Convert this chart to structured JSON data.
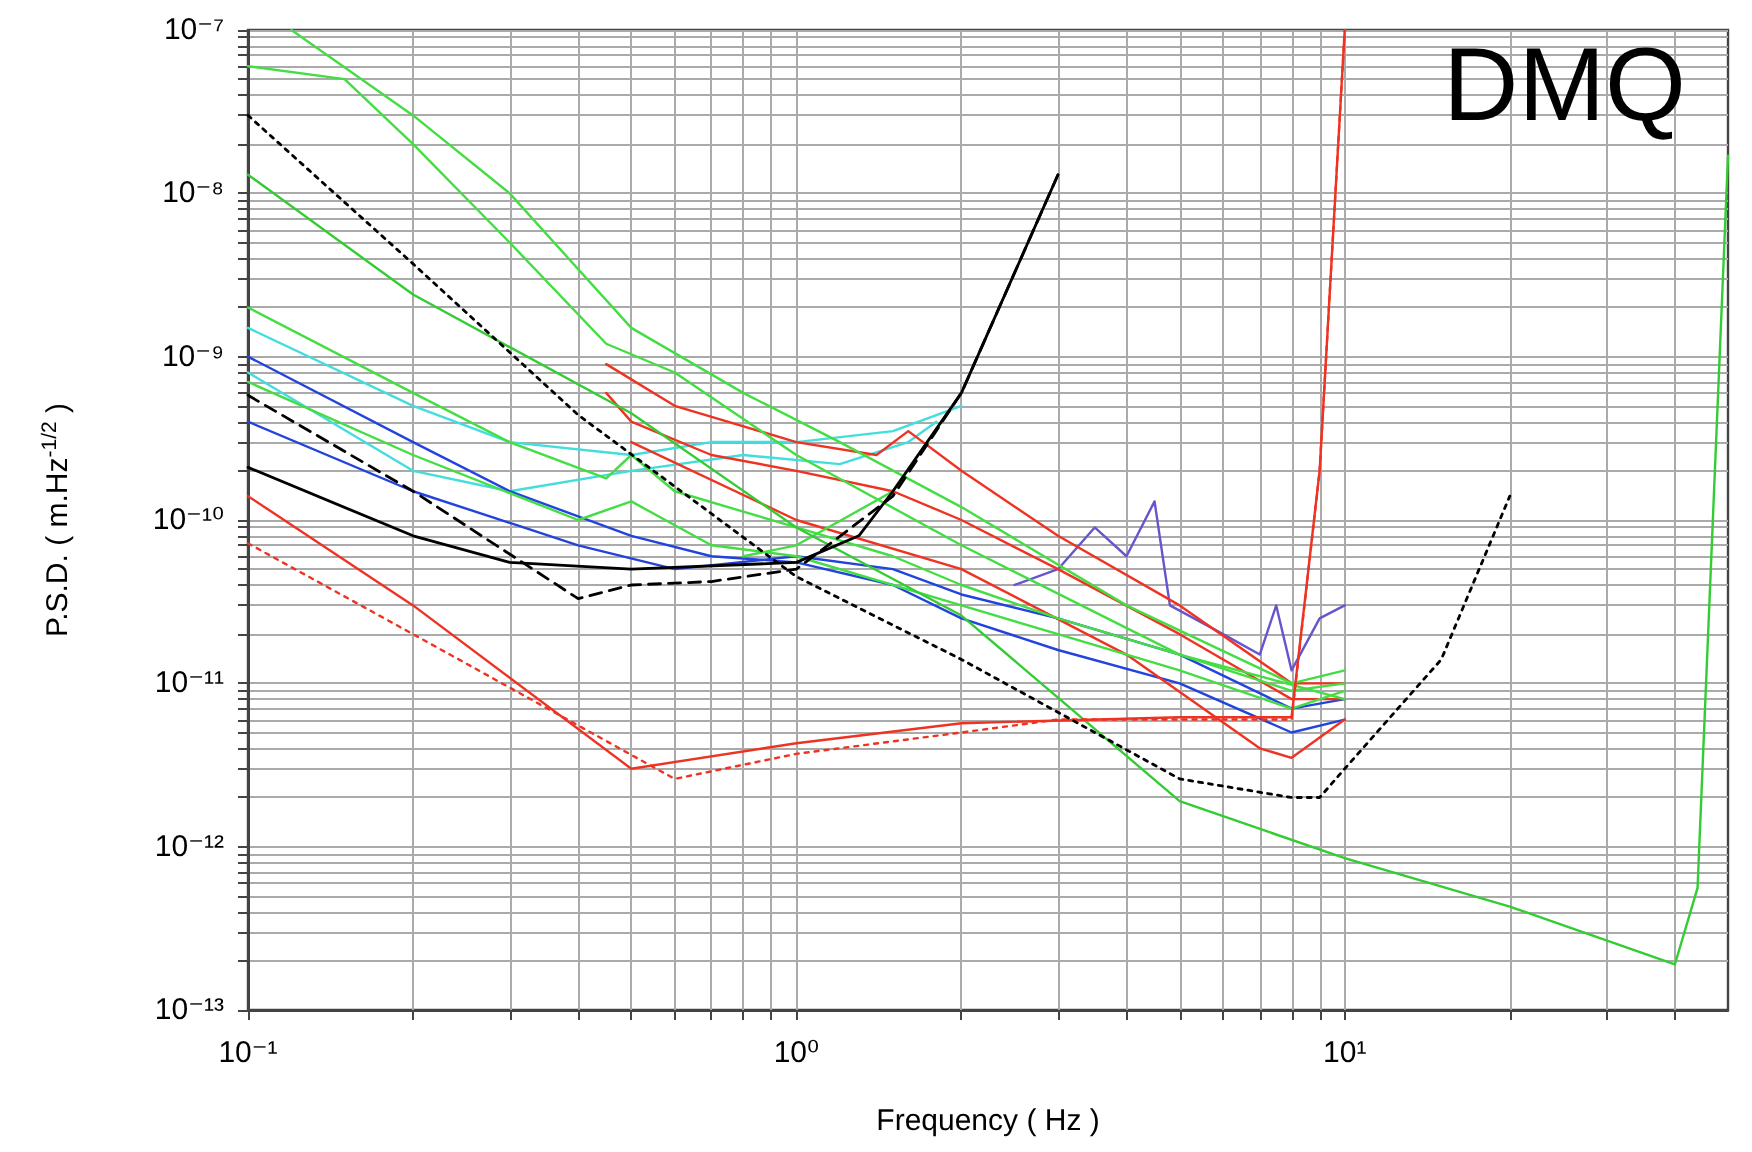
{
  "chart_data": {
    "type": "line",
    "title": "DMQ",
    "xlabel": "Frequency ( Hz )",
    "ylabel": "P.S.D. ( m.Hz$^{-1/2}$ )",
    "log": "xy",
    "grid": true,
    "legend": false,
    "marker": "none",
    "xlim": [
      0.1,
      50
    ],
    "ylim": [
      1e-13,
      1e-07
    ],
    "xticks": [
      {
        "value": 0.1,
        "label": "10⁻¹"
      },
      {
        "value": 0.2,
        "label": null
      },
      {
        "value": 0.3,
        "label": null
      },
      {
        "value": 0.4,
        "label": null
      },
      {
        "value": 0.5,
        "label": null
      },
      {
        "value": 0.6,
        "label": null
      },
      {
        "value": 0.7,
        "label": null
      },
      {
        "value": 0.8,
        "label": null
      },
      {
        "value": 0.9,
        "label": null
      },
      {
        "value": 1,
        "label": "10⁰"
      },
      {
        "value": 2,
        "label": null
      },
      {
        "value": 3,
        "label": null
      },
      {
        "value": 4,
        "label": null
      },
      {
        "value": 5,
        "label": null
      },
      {
        "value": 6,
        "label": null
      },
      {
        "value": 7,
        "label": null
      },
      {
        "value": 8,
        "label": null
      },
      {
        "value": 9,
        "label": null
      },
      {
        "value": 10,
        "label": "10¹"
      },
      {
        "value": 20,
        "label": null
      },
      {
        "value": 30,
        "label": null
      },
      {
        "value": 40,
        "label": null
      }
    ],
    "yticks": [
      {
        "value": 1e-13,
        "label": "10⁻¹³"
      },
      {
        "value": 2e-13,
        "label": null
      },
      {
        "value": 3e-13,
        "label": null
      },
      {
        "value": 4e-13,
        "label": null
      },
      {
        "value": 5e-13,
        "label": null
      },
      {
        "value": 6e-13,
        "label": null
      },
      {
        "value": 7e-13,
        "label": null
      },
      {
        "value": 8e-13,
        "label": null
      },
      {
        "value": 9e-13,
        "label": null
      },
      {
        "value": 1e-12,
        "label": "10⁻¹²"
      },
      {
        "value": 2e-12,
        "label": null
      },
      {
        "value": 3e-12,
        "label": null
      },
      {
        "value": 4e-12,
        "label": null
      },
      {
        "value": 5e-12,
        "label": null
      },
      {
        "value": 6e-12,
        "label": null
      },
      {
        "value": 7e-12,
        "label": null
      },
      {
        "value": 8e-12,
        "label": null
      },
      {
        "value": 9e-12,
        "label": null
      },
      {
        "value": 1e-11,
        "label": "10⁻¹¹"
      },
      {
        "value": 2e-11,
        "label": null
      },
      {
        "value": 3e-11,
        "label": null
      },
      {
        "value": 4e-11,
        "label": null
      },
      {
        "value": 5e-11,
        "label": null
      },
      {
        "value": 6e-11,
        "label": null
      },
      {
        "value": 7e-11,
        "label": null
      },
      {
        "value": 8e-11,
        "label": null
      },
      {
        "value": 9e-11,
        "label": null
      },
      {
        "value": 1e-10,
        "label": "10⁻¹⁰"
      },
      {
        "value": 2e-10,
        "label": null
      },
      {
        "value": 3e-10,
        "label": null
      },
      {
        "value": 4e-10,
        "label": null
      },
      {
        "value": 5e-10,
        "label": null
      },
      {
        "value": 6e-10,
        "label": null
      },
      {
        "value": 7e-10,
        "label": null
      },
      {
        "value": 8e-10,
        "label": null
      },
      {
        "value": 9e-10,
        "label": null
      },
      {
        "value": 1e-09,
        "label": "10⁻⁹"
      },
      {
        "value": 2e-09,
        "label": null
      },
      {
        "value": 3e-09,
        "label": null
      },
      {
        "value": 4e-09,
        "label": null
      },
      {
        "value": 5e-09,
        "label": null
      },
      {
        "value": 6e-09,
        "label": null
      },
      {
        "value": 7e-09,
        "label": null
      },
      {
        "value": 8e-09,
        "label": null
      },
      {
        "value": 9e-09,
        "label": null
      },
      {
        "value": 1e-08,
        "label": "10⁻⁸"
      },
      {
        "value": 2e-08,
        "label": null
      },
      {
        "value": 3e-08,
        "label": null
      },
      {
        "value": 4e-08,
        "label": null
      },
      {
        "value": 5e-08,
        "label": null
      },
      {
        "value": 6e-08,
        "label": null
      },
      {
        "value": 7e-08,
        "label": null
      },
      {
        "value": 8e-08,
        "label": null
      },
      {
        "value": 9e-08,
        "label": null
      },
      {
        "value": 1e-07,
        "label": "10⁻⁷"
      }
    ],
    "series": [
      {
        "color": "#44dddd",
        "line_style": "solid",
        "x": [
          0.1,
          0.2,
          0.3,
          0.5,
          0.7,
          1,
          1.5,
          2
        ],
        "values": [
          1.5e-09,
          5e-10,
          3e-10,
          2.5e-10,
          3e-10,
          3e-10,
          3.5e-10,
          5e-10
        ]
      },
      {
        "color": "#44dddd",
        "line_style": "solid",
        "x": [
          0.1,
          0.2,
          0.3,
          0.5,
          0.8,
          1.2,
          1.6,
          1.8
        ],
        "values": [
          8e-10,
          2e-10,
          1.5e-10,
          2e-10,
          2.5e-10,
          2.2e-10,
          3e-10,
          4e-10
        ]
      },
      {
        "color": "#2244dd",
        "line_style": "solid",
        "x": [
          0.1,
          0.2,
          0.3,
          0.5,
          0.7,
          1,
          1.5,
          2,
          3,
          5,
          8,
          10
        ],
        "values": [
          1e-09,
          3e-10,
          1.5e-10,
          8e-11,
          6e-11,
          5.5e-11,
          4e-11,
          2.5e-11,
          1.6e-11,
          1e-11,
          5e-12,
          6e-12
        ]
      },
      {
        "color": "#2244dd",
        "line_style": "solid",
        "x": [
          0.1,
          0.2,
          0.4,
          0.6,
          1,
          1.5,
          2,
          3,
          5,
          8,
          10
        ],
        "values": [
          4e-10,
          1.5e-10,
          7e-11,
          5e-11,
          6e-11,
          5e-11,
          3.5e-11,
          2.5e-11,
          1.5e-11,
          7e-12,
          8e-12
        ]
      },
      {
        "color": "#6655cc",
        "line_style": "solid",
        "x": [
          2.5,
          3,
          3.5,
          4,
          4.5,
          4.8,
          6,
          7,
          7.5,
          8,
          9,
          10
        ],
        "values": [
          4e-11,
          5e-11,
          9e-11,
          6e-11,
          1.3e-10,
          3e-11,
          2e-11,
          1.5e-11,
          3e-11,
          1.2e-11,
          2.5e-11,
          3e-11
        ]
      },
      {
        "color": "#ee3322",
        "line_style": "solid",
        "x": [
          0.45,
          0.5,
          0.7,
          1,
          1.5,
          2,
          3,
          5,
          8,
          10
        ],
        "values": [
          6e-10,
          4e-10,
          2.5e-10,
          2e-10,
          1.5e-10,
          1e-10,
          5e-11,
          2e-11,
          8e-12,
          8e-12
        ]
      },
      {
        "color": "#ee3322",
        "line_style": "solid",
        "x": [
          0.45,
          0.6,
          1,
          1.4,
          1.6,
          2,
          3,
          5,
          8,
          10
        ],
        "values": [
          9e-10,
          5e-10,
          3e-10,
          2.5e-10,
          3.5e-10,
          2e-10,
          8e-11,
          3e-11,
          1e-11,
          1e-11
        ]
      },
      {
        "color": "#ee3322",
        "line_style": "solid",
        "x": [
          0.5,
          1,
          2,
          4,
          7,
          8,
          10
        ],
        "values": [
          3e-10,
          1e-10,
          5e-11,
          1.5e-11,
          4e-12,
          3.5e-12,
          6e-12
        ]
      },
      {
        "color": "#44dd44",
        "line_style": "solid",
        "x": [
          0.1,
          0.15,
          0.2,
          0.3,
          0.45,
          0.6,
          1,
          2,
          5,
          10
        ],
        "values": [
          6e-08,
          5e-08,
          2e-08,
          5e-09,
          1.2e-09,
          8e-10,
          2.5e-10,
          7e-11,
          1.5e-11,
          8e-12
        ]
      },
      {
        "color": "#44dd44",
        "line_style": "solid",
        "x": [
          0.12,
          0.2,
          0.3,
          0.5,
          0.8,
          1.2,
          2,
          4,
          8,
          10
        ],
        "values": [
          1e-07,
          3e-08,
          1e-08,
          1.5e-09,
          6e-10,
          3e-10,
          1.2e-10,
          3e-11,
          1e-11,
          1.2e-11
        ]
      },
      {
        "color": "#44dd44",
        "line_style": "solid",
        "x": [
          0.1,
          0.2,
          0.3,
          0.45,
          0.5,
          0.6,
          1,
          1.5,
          2,
          3,
          5,
          8,
          10
        ],
        "values": [
          2e-09,
          6e-10,
          3e-10,
          1.8e-10,
          2.5e-10,
          1.5e-10,
          9e-11,
          6e-11,
          4e-11,
          2.5e-11,
          1.5e-11,
          9e-12,
          1e-11
        ]
      },
      {
        "color": "#44dd44",
        "line_style": "solid",
        "x": [
          0.1,
          0.2,
          0.4,
          0.5,
          0.7,
          1,
          2,
          3,
          5,
          8,
          10
        ],
        "values": [
          7e-10,
          2.5e-10,
          1e-10,
          1.3e-10,
          7e-11,
          6e-11,
          3e-11,
          2e-11,
          1.2e-11,
          7e-12,
          9e-12
        ]
      },
      {
        "color": "#44dd44",
        "line_style": "solid",
        "x": [
          0.8,
          1,
          1.5,
          2
        ],
        "values": [
          6e-11,
          7e-11,
          1.5e-10,
          6e-10
        ]
      },
      {
        "color": "#33cc33",
        "line_style": "solid",
        "x": [
          0.1,
          0.2,
          0.5,
          1,
          2,
          5,
          10,
          20,
          40,
          44,
          50
        ],
        "values": [
          1.3e-08,
          2.4e-09,
          4.5e-10,
          9e-11,
          2.6e-11,
          1.9e-12,
          8.5e-13,
          4.3e-13,
          1.9e-13,
          5.6e-13,
          1.7e-08
        ]
      },
      {
        "color": "#000000",
        "line_style": "solid",
        "x": [
          0.1,
          0.2,
          0.3,
          0.5,
          1,
          1.3,
          1.5,
          2,
          3
        ],
        "values": [
          2.1e-10,
          8e-11,
          5.5e-11,
          5e-11,
          5.5e-11,
          8e-11,
          1.5e-10,
          6e-10,
          1.3e-08
        ]
      },
      {
        "color": "#000000",
        "line_style": "dashed",
        "x": [
          0.1,
          0.2,
          0.4,
          0.5,
          0.7,
          1,
          1.5,
          2,
          3
        ],
        "values": [
          5.8e-10,
          1.5e-10,
          3.3e-11,
          4e-11,
          4.2e-11,
          5e-11,
          1.4e-10,
          6e-10,
          1.3e-08
        ]
      },
      {
        "color": "#000000",
        "line_style": "dotted",
        "x": [
          0.1,
          0.2,
          0.4,
          1,
          2,
          5,
          8,
          9,
          10,
          15,
          20
        ],
        "values": [
          3e-08,
          3.7e-09,
          4.4e-10,
          4.5e-11,
          1.4e-11,
          2.6e-12,
          2e-12,
          2e-12,
          3e-12,
          1.4e-11,
          1.4e-10
        ]
      },
      {
        "color": "#ee3322",
        "line_style": "solid",
        "x": [
          0.1,
          0.2,
          0.5,
          1,
          2,
          5,
          8,
          9,
          10
        ],
        "values": [
          1.4e-10,
          3e-11,
          3e-12,
          4.3e-12,
          5.7e-12,
          6.2e-12,
          6.2e-12,
          2e-10,
          1e-07
        ]
      },
      {
        "color": "#ee3322",
        "line_style": "dotted",
        "x": [
          0.1,
          0.2,
          0.6,
          1,
          2,
          3,
          8,
          9,
          10
        ],
        "values": [
          7.2e-11,
          2e-11,
          2.6e-12,
          3.7e-12,
          5e-12,
          6e-12,
          6e-12,
          2e-10,
          1e-07
        ]
      }
    ]
  }
}
